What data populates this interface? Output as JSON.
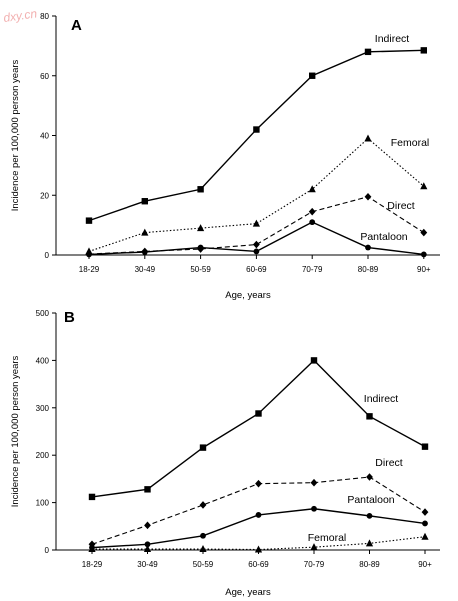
{
  "watermark": "dxy.cn",
  "chart_data": [
    {
      "type": "line",
      "panel": "A",
      "categories": [
        "18-29",
        "30-49",
        "50-59",
        "60-69",
        "70-79",
        "80-89",
        "90+"
      ],
      "ylim": [
        0,
        80
      ],
      "yticks": [
        0,
        20,
        40,
        60,
        80
      ],
      "xlabel": "Age, years",
      "ylabel": "Incidence per 100,000 person years",
      "grid": false,
      "legend": "labels placed next to lines",
      "series": [
        {
          "name": "Indirect",
          "values": [
            11.5,
            18,
            22,
            42,
            60,
            68,
            68.5
          ],
          "marker": "square",
          "dash": "solid"
        },
        {
          "name": "Femoral",
          "values": [
            1.2,
            7.5,
            9,
            10.5,
            22,
            39,
            23
          ],
          "marker": "triangle",
          "dash": "dotted"
        },
        {
          "name": "Direct",
          "values": [
            0.3,
            1.2,
            2,
            3.5,
            14.5,
            19.5,
            7.5
          ],
          "marker": "diamond",
          "dash": "dashed"
        },
        {
          "name": "Pantaloon",
          "values": [
            0.2,
            1,
            2.5,
            1.2,
            11,
            2.5,
            0.2
          ],
          "marker": "circle",
          "dash": "solid"
        }
      ]
    },
    {
      "type": "line",
      "panel": "B",
      "categories": [
        "18-29",
        "30-49",
        "50-59",
        "60-69",
        "70-79",
        "80-89",
        "90+"
      ],
      "ylim": [
        0,
        500
      ],
      "yticks": [
        0,
        100,
        200,
        300,
        400,
        500
      ],
      "xlabel": "Age, years",
      "ylabel": "Incidence per 100,000 person years",
      "grid": false,
      "legend": "labels placed next to lines",
      "series": [
        {
          "name": "Indirect",
          "values": [
            112,
            128,
            216,
            288,
            400,
            282,
            218
          ],
          "marker": "square",
          "dash": "solid"
        },
        {
          "name": "Direct",
          "values": [
            12,
            52,
            95,
            140,
            142,
            154,
            80
          ],
          "marker": "diamond",
          "dash": "dashed"
        },
        {
          "name": "Pantaloon",
          "values": [
            5,
            12,
            30,
            74,
            87,
            72,
            56
          ],
          "marker": "circle",
          "dash": "solid"
        },
        {
          "name": "Femoral",
          "values": [
            2,
            2,
            2,
            1,
            6,
            14,
            28
          ],
          "marker": "triangle",
          "dash": "dotted"
        }
      ]
    }
  ]
}
